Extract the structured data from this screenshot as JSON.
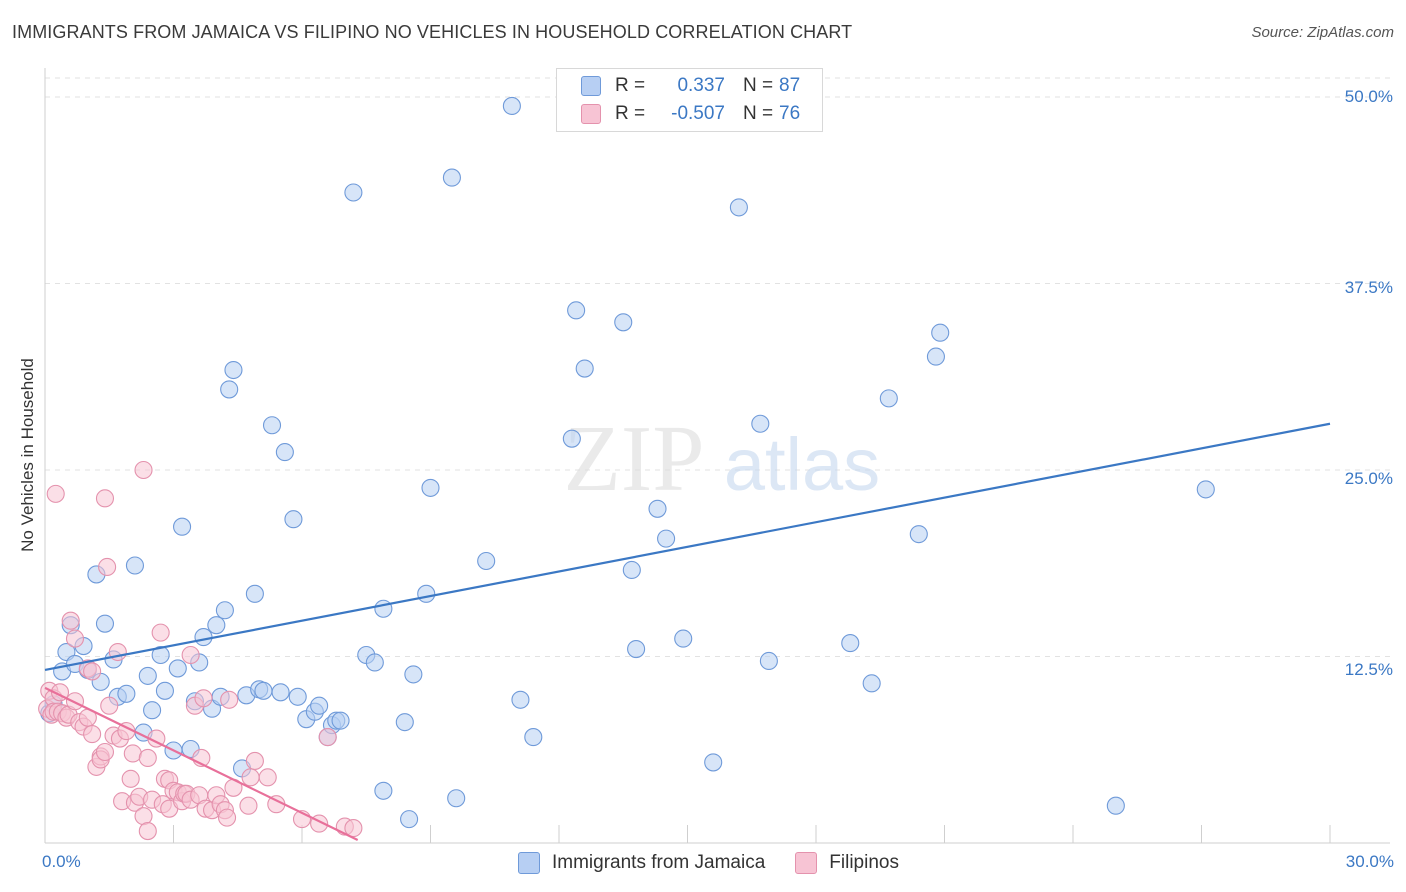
{
  "header": {
    "title": "IMMIGRANTS FROM JAMAICA VS FILIPINO NO VEHICLES IN HOUSEHOLD CORRELATION CHART",
    "source": "Source: ZipAtlas.com"
  },
  "watermark": {
    "zip": "ZIP",
    "atlas": "atlas"
  },
  "legend": {
    "rows": [
      {
        "r_label": "R =",
        "r_value": "0.337",
        "n_label": "N =",
        "n_value": "87"
      },
      {
        "r_label": "R =",
        "r_value": "-0.507",
        "n_label": "N =",
        "n_value": "76"
      }
    ]
  },
  "colors": {
    "blue": "#3b78c4",
    "blue_fill": "#b7cff3",
    "pink": "#e8709a",
    "pink_fill": "#f7c4d4"
  },
  "chart_data": {
    "type": "scatter",
    "title": "IMMIGRANTS FROM JAMAICA VS FILIPINO NO VEHICLES IN HOUSEHOLD CORRELATION CHART",
    "xlabel": "",
    "ylabel": "No Vehicles in Household",
    "xlim": [
      0,
      30
    ],
    "ylim": [
      0,
      50
    ],
    "x_tick_labels": [
      "0.0%",
      "30.0%"
    ],
    "y_ticks": [
      12.5,
      25,
      37.5,
      50
    ],
    "y_tick_labels": [
      "12.5%",
      "25.0%",
      "37.5%",
      "50.0%"
    ],
    "grid": true,
    "legend_position": "top-center",
    "series": [
      {
        "name": "Immigrants from Jamaica",
        "r": 0.337,
        "n": 87,
        "trend": {
          "x": [
            0,
            30
          ],
          "y": [
            11.6,
            28.1
          ]
        },
        "points": [
          [
            0.1,
            8.7
          ],
          [
            0.2,
            9.3
          ],
          [
            0.4,
            11.5
          ],
          [
            0.5,
            12.8
          ],
          [
            0.6,
            14.6
          ],
          [
            0.7,
            12.0
          ],
          [
            0.9,
            13.2
          ],
          [
            1.0,
            11.6
          ],
          [
            1.2,
            18.0
          ],
          [
            1.3,
            10.8
          ],
          [
            1.4,
            14.7
          ],
          [
            1.6,
            12.3
          ],
          [
            1.7,
            9.8
          ],
          [
            1.9,
            10.0
          ],
          [
            2.1,
            18.6
          ],
          [
            2.3,
            7.4
          ],
          [
            2.4,
            11.2
          ],
          [
            2.5,
            8.9
          ],
          [
            2.7,
            12.6
          ],
          [
            2.8,
            10.2
          ],
          [
            3.0,
            6.2
          ],
          [
            3.1,
            11.7
          ],
          [
            3.2,
            21.2
          ],
          [
            3.4,
            6.3
          ],
          [
            3.5,
            9.5
          ],
          [
            3.6,
            12.1
          ],
          [
            3.7,
            13.8
          ],
          [
            3.9,
            9.0
          ],
          [
            4.0,
            14.6
          ],
          [
            4.1,
            9.8
          ],
          [
            4.2,
            15.6
          ],
          [
            4.3,
            30.4
          ],
          [
            4.4,
            31.7
          ],
          [
            4.6,
            5.0
          ],
          [
            4.7,
            9.9
          ],
          [
            4.9,
            16.7
          ],
          [
            5.0,
            10.3
          ],
          [
            5.1,
            10.2
          ],
          [
            5.3,
            28.0
          ],
          [
            5.5,
            10.1
          ],
          [
            5.6,
            26.2
          ],
          [
            5.8,
            21.7
          ],
          [
            5.9,
            9.8
          ],
          [
            6.1,
            8.3
          ],
          [
            6.3,
            8.8
          ],
          [
            6.4,
            9.2
          ],
          [
            6.6,
            7.1
          ],
          [
            6.7,
            7.9
          ],
          [
            6.8,
            8.2
          ],
          [
            6.9,
            8.2
          ],
          [
            7.2,
            43.6
          ],
          [
            7.5,
            12.6
          ],
          [
            7.7,
            12.1
          ],
          [
            7.9,
            15.7
          ],
          [
            7.9,
            3.5
          ],
          [
            8.4,
            8.1
          ],
          [
            8.5,
            1.6
          ],
          [
            8.6,
            11.3
          ],
          [
            8.9,
            16.7
          ],
          [
            9.0,
            23.8
          ],
          [
            9.5,
            44.6
          ],
          [
            9.6,
            3.0
          ],
          [
            10.3,
            18.9
          ],
          [
            10.9,
            49.4
          ],
          [
            11.1,
            9.6
          ],
          [
            11.4,
            7.1
          ],
          [
            12.3,
            27.1
          ],
          [
            12.4,
            35.7
          ],
          [
            12.6,
            31.8
          ],
          [
            13.5,
            34.9
          ],
          [
            13.7,
            18.3
          ],
          [
            13.8,
            13.0
          ],
          [
            14.3,
            22.4
          ],
          [
            14.5,
            20.4
          ],
          [
            14.9,
            13.7
          ],
          [
            15.6,
            5.4
          ],
          [
            16.2,
            42.6
          ],
          [
            16.7,
            28.1
          ],
          [
            16.9,
            12.2
          ],
          [
            18.8,
            13.4
          ],
          [
            19.3,
            10.7
          ],
          [
            19.7,
            29.8
          ],
          [
            20.4,
            20.7
          ],
          [
            20.8,
            32.6
          ],
          [
            20.9,
            34.2
          ],
          [
            25.0,
            2.5
          ],
          [
            27.1,
            23.7
          ]
        ]
      },
      {
        "name": "Filipinos",
        "r": -0.507,
        "n": 76,
        "trend": {
          "x": [
            0,
            7.3
          ],
          "y": [
            10.4,
            0.2
          ]
        },
        "points": [
          [
            0.05,
            9.0
          ],
          [
            0.1,
            10.2
          ],
          [
            0.15,
            8.6
          ],
          [
            0.2,
            9.7
          ],
          [
            0.2,
            8.8
          ],
          [
            0.25,
            23.4
          ],
          [
            0.3,
            8.8
          ],
          [
            0.35,
            10.1
          ],
          [
            0.4,
            8.7
          ],
          [
            0.5,
            8.4
          ],
          [
            0.55,
            8.6
          ],
          [
            0.6,
            14.9
          ],
          [
            0.7,
            9.5
          ],
          [
            0.7,
            13.7
          ],
          [
            0.8,
            8.1
          ],
          [
            0.9,
            7.8
          ],
          [
            1.0,
            8.4
          ],
          [
            1.0,
            11.7
          ],
          [
            1.1,
            11.5
          ],
          [
            1.1,
            7.3
          ],
          [
            1.2,
            5.1
          ],
          [
            1.3,
            5.8
          ],
          [
            1.3,
            5.6
          ],
          [
            1.4,
            6.1
          ],
          [
            1.4,
            23.1
          ],
          [
            1.45,
            18.5
          ],
          [
            1.5,
            9.2
          ],
          [
            1.6,
            7.2
          ],
          [
            1.7,
            12.8
          ],
          [
            1.75,
            7.0
          ],
          [
            1.8,
            2.8
          ],
          [
            1.9,
            7.5
          ],
          [
            2.0,
            4.3
          ],
          [
            2.05,
            6.0
          ],
          [
            2.1,
            2.7
          ],
          [
            2.2,
            3.1
          ],
          [
            2.3,
            1.8
          ],
          [
            2.3,
            25.0
          ],
          [
            2.4,
            5.7
          ],
          [
            2.4,
            0.8
          ],
          [
            2.5,
            2.9
          ],
          [
            2.6,
            7.0
          ],
          [
            2.7,
            14.1
          ],
          [
            2.75,
            2.6
          ],
          [
            2.8,
            4.3
          ],
          [
            2.9,
            2.3
          ],
          [
            2.9,
            4.2
          ],
          [
            3.0,
            3.5
          ],
          [
            3.1,
            3.4
          ],
          [
            3.2,
            2.8
          ],
          [
            3.25,
            3.3
          ],
          [
            3.3,
            3.3
          ],
          [
            3.4,
            2.9
          ],
          [
            3.4,
            12.6
          ],
          [
            3.5,
            9.2
          ],
          [
            3.6,
            3.2
          ],
          [
            3.65,
            5.7
          ],
          [
            3.7,
            9.7
          ],
          [
            3.75,
            2.3
          ],
          [
            3.9,
            2.2
          ],
          [
            4.0,
            3.2
          ],
          [
            4.1,
            2.6
          ],
          [
            4.2,
            2.2
          ],
          [
            4.25,
            1.7
          ],
          [
            4.3,
            9.6
          ],
          [
            4.4,
            3.7
          ],
          [
            4.75,
            2.5
          ],
          [
            4.8,
            4.4
          ],
          [
            4.9,
            5.5
          ],
          [
            5.2,
            4.4
          ],
          [
            5.4,
            2.6
          ],
          [
            6.0,
            1.6
          ],
          [
            6.4,
            1.3
          ],
          [
            6.6,
            7.1
          ],
          [
            7.0,
            1.1
          ],
          [
            7.2,
            1.0
          ]
        ]
      }
    ]
  },
  "bottom_legend": {
    "items": [
      "Immigrants from Jamaica",
      "Filipinos"
    ]
  }
}
